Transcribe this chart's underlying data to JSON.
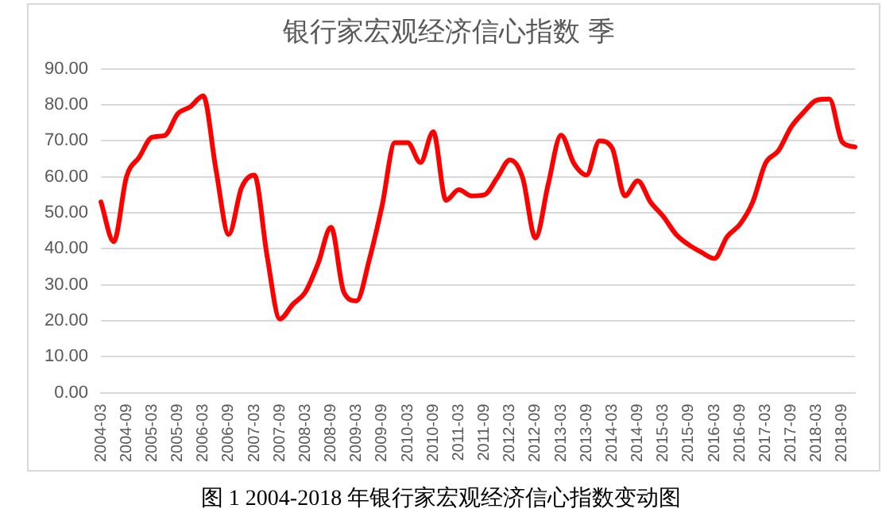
{
  "chart_data": {
    "type": "line",
    "title": "银行家宏观经济信心指数 季",
    "annotations": [
      "图 1 2004-2018 年银行家宏观经济信心指数变动图"
    ],
    "categories": [
      "2004-03",
      null,
      "2004-09",
      null,
      "2005-03",
      null,
      "2005-09",
      null,
      "2006-03",
      null,
      "2006-09",
      null,
      "2007-03",
      null,
      "2007-09",
      null,
      "2008-03",
      null,
      "2008-09",
      null,
      "2009-03",
      null,
      "2009-09",
      null,
      "2010-03",
      null,
      "2010-09",
      null,
      "2011-03",
      null,
      "2011-09",
      null,
      "2012-03",
      null,
      "2012-09",
      null,
      "2013-03",
      null,
      "2013-09",
      null,
      "2014-03",
      null,
      "2014-09",
      null,
      "2015-03",
      null,
      "2015-09",
      null,
      "2016-03",
      null,
      "2016-09",
      null,
      "2017-03",
      null,
      "2017-09",
      null,
      "2018-03",
      null,
      "2018-09",
      null
    ],
    "values": [
      53,
      42,
      60,
      65.5,
      71,
      71.5,
      77.5,
      79.5,
      82.5,
      62,
      44,
      57,
      60.5,
      38,
      20.5,
      24.5,
      28,
      36,
      46,
      28,
      25.5,
      37,
      52,
      69.5,
      69.5,
      64,
      72.5,
      53.5,
      56.4,
      54.7,
      55,
      59.7,
      64.7,
      59.7,
      43,
      58,
      71.6,
      63.8,
      60.5,
      70,
      68,
      54.7,
      58.9,
      53,
      49,
      44,
      41.1,
      39,
      37.3,
      43.4,
      46.8,
      53,
      63.8,
      67.2,
      73.8,
      78,
      81.3,
      81.6,
      69.7,
      68.3
    ],
    "color": "#ff0000",
    "ylim": [
      0,
      90
    ],
    "yticks": [
      {
        "value": 0,
        "label": "0.00"
      },
      {
        "value": 10,
        "label": "10.00"
      },
      {
        "value": 20,
        "label": "20.00"
      },
      {
        "value": 30,
        "label": "30.00"
      },
      {
        "value": 40,
        "label": "40.00"
      },
      {
        "value": 50,
        "label": "50.00"
      },
      {
        "value": 60,
        "label": "60.00"
      },
      {
        "value": 70,
        "label": "70.00"
      },
      {
        "value": 80,
        "label": "80.00"
      },
      {
        "value": 90,
        "label": "90.00"
      }
    ],
    "grid": "y",
    "legend": false,
    "marker": "none",
    "line_style": "solid"
  }
}
